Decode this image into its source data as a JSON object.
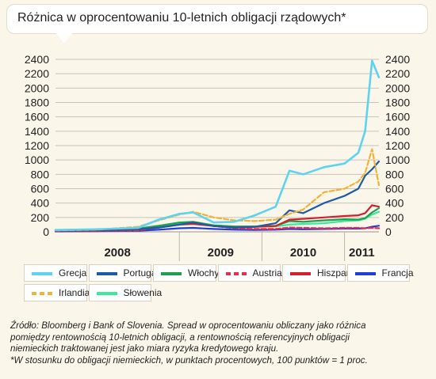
{
  "title": "Różnica w oprocentowaniu 10-letnich obligacji rządowych*",
  "footnote": [
    "Źródło: Bloomberg i Bank of Slovenia. Spread w oprocentowaniu obliczany jako różnica",
    "pomiędzy rentownością 10-letnich obligacji, a rentownością referencyjnych obligacji",
    "niemieckich traktowanej jest jako miara ryzyka kredytowego kraju.",
    "*W stosunku do obligacji niemieckich, w punktach procentowych, 100 punktów = 1 proc."
  ],
  "colors": {
    "background": "#fbf6ea",
    "grid": "#c9c3b5",
    "Grecja": "#5cd4f0",
    "Portugalia": "#1c5ca4",
    "Włochy": "#1aa050",
    "Austria": "#f02a4a",
    "Hiszpania": "#d4202e",
    "Francja": "#1e3ed8",
    "Irlandia": "#f2b23a",
    "Słowenia": "#3de89a"
  },
  "chart_data": {
    "type": "line",
    "title": "Różnica w oprocentowaniu 10-letnich obligacji rządowych*",
    "xlabel": "",
    "ylabel": "",
    "ylim": [
      0,
      2400
    ],
    "y_ticks": [
      0,
      200,
      400,
      600,
      800,
      1000,
      1200,
      1400,
      1600,
      1800,
      2000,
      2200,
      2400
    ],
    "x_tick_labels": [
      "2008",
      "2009",
      "2010",
      "2011"
    ],
    "x_range": [
      "2007-07",
      "2011-06"
    ],
    "grid": "horizontal",
    "legend_position": "bottom",
    "dual_y_axis": true,
    "series": [
      {
        "name": "Grecja",
        "style": "solid",
        "x": [
          "2007-07",
          "2008-01",
          "2008-07",
          "2008-10",
          "2009-01",
          "2009-03",
          "2009-06",
          "2009-09",
          "2009-12",
          "2010-03",
          "2010-05",
          "2010-07",
          "2010-10",
          "2011-01",
          "2011-03",
          "2011-04",
          "2011-05",
          "2011-06"
        ],
        "values": [
          25,
          35,
          55,
          170,
          250,
          270,
          130,
          140,
          230,
          350,
          850,
          800,
          900,
          950,
          1100,
          1400,
          2380,
          2150
        ]
      },
      {
        "name": "Portugalia",
        "style": "solid",
        "x": [
          "2007-07",
          "2008-01",
          "2008-07",
          "2008-10",
          "2009-01",
          "2009-03",
          "2009-06",
          "2009-09",
          "2009-12",
          "2010-03",
          "2010-05",
          "2010-07",
          "2010-10",
          "2011-01",
          "2011-03",
          "2011-04",
          "2011-05",
          "2011-06"
        ],
        "values": [
          15,
          25,
          35,
          60,
          100,
          130,
          80,
          60,
          70,
          120,
          300,
          260,
          400,
          500,
          600,
          780,
          870,
          980
        ]
      },
      {
        "name": "Włochy",
        "style": "solid",
        "x": [
          "2007-07",
          "2008-01",
          "2008-07",
          "2008-10",
          "2009-01",
          "2009-03",
          "2009-06",
          "2009-09",
          "2009-12",
          "2010-03",
          "2010-05",
          "2010-07",
          "2010-10",
          "2011-01",
          "2011-03",
          "2011-04",
          "2011-05",
          "2011-06"
        ],
        "values": [
          20,
          30,
          45,
          85,
          130,
          140,
          90,
          75,
          75,
          85,
          150,
          140,
          160,
          175,
          170,
          190,
          270,
          330
        ]
      },
      {
        "name": "Austria",
        "style": "dashed",
        "x": [
          "2007-07",
          "2008-01",
          "2008-07",
          "2008-10",
          "2009-01",
          "2009-03",
          "2009-06",
          "2009-09",
          "2009-12",
          "2010-03",
          "2010-05",
          "2010-07",
          "2010-10",
          "2011-01",
          "2011-03",
          "2011-04",
          "2011-05",
          "2011-06"
        ],
        "values": [
          10,
          15,
          20,
          60,
          110,
          130,
          80,
          50,
          40,
          40,
          60,
          55,
          50,
          55,
          55,
          50,
          55,
          50
        ]
      },
      {
        "name": "Hiszpania",
        "style": "solid",
        "x": [
          "2007-07",
          "2008-01",
          "2008-07",
          "2008-10",
          "2009-01",
          "2009-03",
          "2009-06",
          "2009-09",
          "2009-12",
          "2010-03",
          "2010-05",
          "2010-07",
          "2010-10",
          "2011-01",
          "2011-03",
          "2011-04",
          "2011-05",
          "2011-06"
        ],
        "values": [
          10,
          15,
          35,
          60,
          100,
          110,
          80,
          60,
          70,
          80,
          170,
          180,
          200,
          220,
          230,
          260,
          370,
          350
        ]
      },
      {
        "name": "Francja",
        "style": "solid",
        "x": [
          "2007-07",
          "2008-01",
          "2008-07",
          "2008-10",
          "2009-01",
          "2009-03",
          "2009-06",
          "2009-09",
          "2009-12",
          "2010-03",
          "2010-05",
          "2010-07",
          "2010-10",
          "2011-01",
          "2011-03",
          "2011-04",
          "2011-05",
          "2011-06"
        ],
        "values": [
          5,
          10,
          15,
          30,
          50,
          55,
          40,
          30,
          25,
          30,
          40,
          35,
          40,
          45,
          45,
          50,
          70,
          85
        ]
      },
      {
        "name": "Irlandia",
        "style": "dashed",
        "x": [
          "2007-07",
          "2008-01",
          "2008-07",
          "2008-10",
          "2009-01",
          "2009-03",
          "2009-06",
          "2009-09",
          "2009-12",
          "2010-03",
          "2010-05",
          "2010-07",
          "2010-10",
          "2011-01",
          "2011-03",
          "2011-04",
          "2011-05",
          "2011-06"
        ],
        "values": [
          20,
          30,
          70,
          160,
          240,
          280,
          200,
          160,
          150,
          170,
          250,
          310,
          550,
          600,
          700,
          820,
          1150,
          650
        ]
      },
      {
        "name": "Słowenia",
        "style": "solid",
        "x": [
          "2007-07",
          "2008-01",
          "2008-07",
          "2008-10",
          "2009-01",
          "2009-03",
          "2009-06",
          "2009-09",
          "2009-12",
          "2010-03",
          "2010-05",
          "2010-07",
          "2010-10",
          "2011-01",
          "2011-03",
          "2011-04",
          "2011-05",
          "2011-06"
        ],
        "values": [
          15,
          25,
          40,
          75,
          120,
          130,
          90,
          70,
          70,
          75,
          100,
          110,
          120,
          150,
          160,
          180,
          240,
          280
        ]
      }
    ]
  }
}
